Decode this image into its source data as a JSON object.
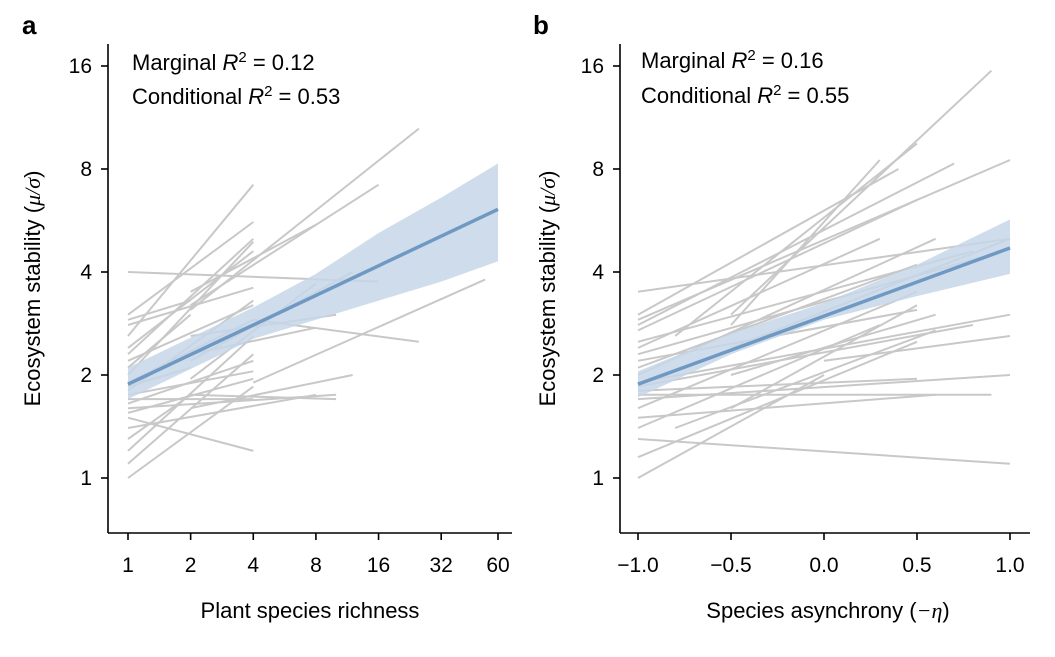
{
  "chart_data": [
    {
      "panel": "a",
      "type": "line",
      "annotation": [
        {
          "prefix": "Marginal ",
          "r": "R",
          "sup": "2",
          "suffix": " = 0.12"
        },
        {
          "prefix": "Conditional ",
          "r": "R",
          "sup": "2",
          "suffix": " = 0.53"
        }
      ],
      "xlabel": "Plant species richness",
      "ylabel": {
        "text": "Ecosystem stability (",
        "sym": "μ/σ",
        "close": ")"
      },
      "xscale": "log2",
      "yscale": "log2",
      "xticks": [
        1,
        2,
        4,
        8,
        16,
        32,
        60
      ],
      "xtick_labels": [
        "1",
        "2",
        "4",
        "8",
        "16",
        "32",
        "60"
      ],
      "yticks": [
        1,
        2,
        4,
        8,
        16
      ],
      "ytick_labels": [
        "1",
        "2",
        "4",
        "8",
        "16"
      ],
      "xlim": [
        0.8,
        70
      ],
      "ylim": [
        0.7,
        18
      ],
      "colors": {
        "sites": "#c8c8c8",
        "fit": "#6f99c3",
        "band": "#c6d6e8"
      },
      "fit": {
        "x": [
          1,
          60
        ],
        "y": [
          1.88,
          6.1
        ]
      },
      "band": {
        "x": [
          1,
          4,
          8,
          16,
          32,
          60
        ],
        "lower": [
          1.7,
          2.55,
          2.9,
          3.3,
          3.75,
          4.3
        ],
        "upper": [
          2.1,
          3.15,
          3.95,
          5.2,
          6.6,
          8.3
        ]
      },
      "sites": [
        [
          [
            1,
            1.0
          ],
          [
            4,
            1.85
          ]
        ],
        [
          [
            1,
            1.1
          ],
          [
            4,
            2.3
          ]
        ],
        [
          [
            1,
            1.2
          ],
          [
            4,
            2.6
          ]
        ],
        [
          [
            1,
            1.3
          ],
          [
            2,
            1.75
          ]
        ],
        [
          [
            1,
            1.4
          ],
          [
            8,
            1.75
          ]
        ],
        [
          [
            1,
            1.5
          ],
          [
            4,
            1.2
          ]
        ],
        [
          [
            1,
            1.55
          ],
          [
            4,
            1.95
          ]
        ],
        [
          [
            1,
            1.6
          ],
          [
            10,
            1.75
          ]
        ],
        [
          [
            1,
            1.65
          ],
          [
            4,
            2.2
          ]
        ],
        [
          [
            1,
            1.7
          ],
          [
            4,
            1.7
          ]
        ],
        [
          [
            1,
            1.75
          ],
          [
            4,
            2.05
          ]
        ],
        [
          [
            1,
            1.8
          ],
          [
            4,
            3.3
          ]
        ],
        [
          [
            1,
            1.85
          ],
          [
            2,
            2.1
          ]
        ],
        [
          [
            1,
            1.9
          ],
          [
            4,
            2.9
          ]
        ],
        [
          [
            1,
            2.0
          ],
          [
            4,
            4.9
          ]
        ],
        [
          [
            1,
            2.1
          ],
          [
            2,
            3.0
          ]
        ],
        [
          [
            1,
            2.2
          ],
          [
            4,
            3.2
          ]
        ],
        [
          [
            1,
            2.3
          ],
          [
            4,
            5.0
          ]
        ],
        [
          [
            1,
            2.4
          ],
          [
            4,
            4.6
          ]
        ],
        [
          [
            1,
            2.6
          ],
          [
            4,
            7.2
          ]
        ],
        [
          [
            1,
            2.8
          ],
          [
            4,
            3.6
          ]
        ],
        [
          [
            1,
            2.9
          ],
          [
            2,
            3.3
          ]
        ],
        [
          [
            1,
            3.0
          ],
          [
            4,
            5.6
          ]
        ],
        [
          [
            1,
            4.0
          ],
          [
            16,
            3.75
          ]
        ],
        [
          [
            2,
            1.6
          ],
          [
            12,
            2.0
          ]
        ],
        [
          [
            2,
            1.75
          ],
          [
            10,
            1.7
          ]
        ],
        [
          [
            2,
            2.3
          ],
          [
            8,
            2.75
          ]
        ],
        [
          [
            2,
            3.5
          ],
          [
            8,
            5.5
          ]
        ],
        [
          [
            2,
            1.95
          ],
          [
            8,
            3.7
          ]
        ],
        [
          [
            2,
            2.6
          ],
          [
            10,
            3.0
          ]
        ],
        [
          [
            2,
            3.1
          ],
          [
            25,
            10.5
          ]
        ],
        [
          [
            4,
            1.9
          ],
          [
            52,
            3.8
          ]
        ],
        [
          [
            4,
            2.9
          ],
          [
            25,
            2.5
          ]
        ],
        [
          [
            2,
            3.2
          ],
          [
            16,
            7.2
          ]
        ],
        [
          [
            2,
            2.2
          ],
          [
            12,
            4.0
          ]
        ]
      ]
    },
    {
      "panel": "b",
      "type": "line",
      "annotation": [
        {
          "prefix": "Marginal ",
          "r": "R",
          "sup": "2",
          "suffix": " = 0.16"
        },
        {
          "prefix": "Conditional ",
          "r": "R",
          "sup": "2",
          "suffix": " = 0.55"
        }
      ],
      "xlabel": {
        "text": "Species asynchrony (",
        "sym": "−η",
        "close": ")"
      },
      "ylabel": {
        "text": "Ecosystem stability (",
        "sym": "μ/σ",
        "close": ")"
      },
      "xscale": "linear",
      "yscale": "log2",
      "xticks": [
        -1.0,
        -0.5,
        0.0,
        0.5,
        1.0
      ],
      "xtick_labels": [
        "−1.0",
        "−0.5",
        "0.0",
        "0.5",
        "1.0"
      ],
      "yticks": [
        1,
        2,
        4,
        8,
        16
      ],
      "ytick_labels": [
        "1",
        "2",
        "4",
        "8",
        "16"
      ],
      "xlim": [
        -1.05,
        1.05
      ],
      "ylim": [
        0.7,
        18
      ],
      "colors": {
        "sites": "#c8c8c8",
        "fit": "#6f99c3",
        "band": "#c6d6e8"
      },
      "fit": {
        "x": [
          -1.0,
          1.0
        ],
        "y": [
          1.88,
          4.7
        ]
      },
      "band": {
        "x": [
          -1.0,
          -0.5,
          0.0,
          0.5,
          1.0
        ],
        "lower": [
          1.72,
          2.3,
          2.9,
          3.4,
          3.95
        ],
        "upper": [
          2.05,
          2.65,
          3.25,
          4.2,
          5.7
        ]
      },
      "sites": [
        [
          [
            -1.0,
            1.0
          ],
          [
            0.0,
            2.0
          ]
        ],
        [
          [
            -1.0,
            1.15
          ],
          [
            0.5,
            2.5
          ]
        ],
        [
          [
            -1.0,
            1.3
          ],
          [
            1.0,
            1.1
          ]
        ],
        [
          [
            -1.0,
            1.4
          ],
          [
            0.3,
            2.8
          ]
        ],
        [
          [
            -1.0,
            1.5
          ],
          [
            0.6,
            1.75
          ]
        ],
        [
          [
            -1.0,
            1.6
          ],
          [
            0.5,
            3.5
          ]
        ],
        [
          [
            -1.0,
            1.7
          ],
          [
            1.0,
            2.0
          ]
        ],
        [
          [
            -1.0,
            1.75
          ],
          [
            0.9,
            1.75
          ]
        ],
        [
          [
            -1.0,
            1.8
          ],
          [
            0.5,
            1.95
          ]
        ],
        [
          [
            -1.0,
            1.85
          ],
          [
            0.8,
            2.8
          ]
        ],
        [
          [
            -1.0,
            1.9
          ],
          [
            1.0,
            3.0
          ]
        ],
        [
          [
            -1.0,
            2.0
          ],
          [
            0.6,
            5.0
          ]
        ],
        [
          [
            -1.0,
            2.1
          ],
          [
            0.5,
            4.2
          ]
        ],
        [
          [
            -1.0,
            2.2
          ],
          [
            0.5,
            3.1
          ]
        ],
        [
          [
            -1.0,
            2.3
          ],
          [
            0.9,
            4.5
          ]
        ],
        [
          [
            -1.0,
            2.4
          ],
          [
            0.3,
            5.0
          ]
        ],
        [
          [
            -1.0,
            2.5
          ],
          [
            0.8,
            4.6
          ]
        ],
        [
          [
            -1.0,
            2.7
          ],
          [
            0.5,
            6.5
          ]
        ],
        [
          [
            -1.0,
            2.8
          ],
          [
            0.7,
            8.3
          ]
        ],
        [
          [
            -1.0,
            2.9
          ],
          [
            1.0,
            8.5
          ]
        ],
        [
          [
            -1.0,
            3.0
          ],
          [
            0.4,
            8.0
          ]
        ],
        [
          [
            -1.0,
            3.5
          ],
          [
            1.0,
            5.0
          ]
        ],
        [
          [
            -0.5,
            2.4
          ],
          [
            1.0,
            5.0
          ]
        ],
        [
          [
            -0.5,
            3.0
          ],
          [
            0.9,
            15.5
          ]
        ],
        [
          [
            -0.5,
            2.0
          ],
          [
            0.6,
            3.0
          ]
        ],
        [
          [
            -0.5,
            1.6
          ],
          [
            0.5,
            3.2
          ]
        ],
        [
          [
            -0.3,
            2.6
          ],
          [
            0.9,
            4.5
          ]
        ],
        [
          [
            0.0,
            2.2
          ],
          [
            1.0,
            2.6
          ]
        ],
        [
          [
            -0.8,
            1.4
          ],
          [
            0.6,
            2.7
          ]
        ],
        [
          [
            -0.8,
            2.6
          ],
          [
            0.5,
            9.5
          ]
        ],
        [
          [
            -0.5,
            2.8
          ],
          [
            0.3,
            8.5
          ]
        ]
      ]
    }
  ]
}
